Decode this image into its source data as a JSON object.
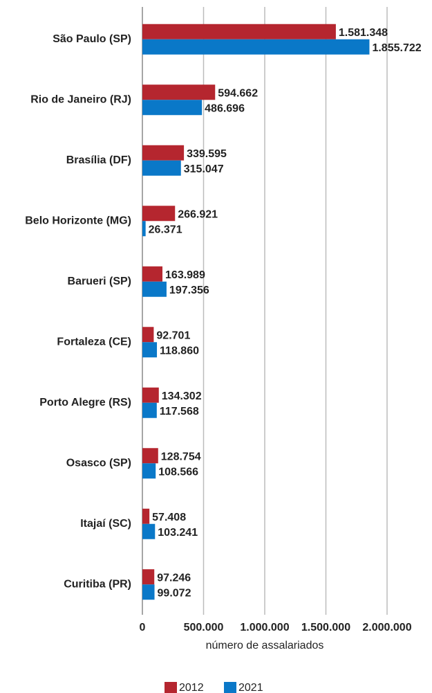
{
  "chart_data": {
    "type": "barh",
    "categories": [
      "São Paulo (SP)",
      "Rio de Janeiro (RJ)",
      "Brasília (DF)",
      "Belo Horizonte (MG)",
      "Barueri (SP)",
      "Fortaleza (CE)",
      "Porto Alegre (RS)",
      "Osasco (SP)",
      "Itajaí (SC)",
      "Curitiba (PR)"
    ],
    "series": [
      {
        "name": "2012",
        "color": "#b5262f",
        "values": [
          1581348,
          594662,
          339595,
          266921,
          163989,
          92701,
          134302,
          128754,
          57408,
          97246
        ],
        "value_labels": [
          "1.581.348",
          "594.662",
          "339.595",
          "266.921",
          "163.989",
          "92.701",
          "134.302",
          "128.754",
          "57.408",
          "97.246"
        ]
      },
      {
        "name": "2021",
        "color": "#0a78c8",
        "values": [
          1855722,
          486696,
          315047,
          26371,
          197356,
          118860,
          117568,
          108566,
          103241,
          99072
        ],
        "value_labels": [
          "1.855.722",
          "486.696",
          "315.047",
          "26.371",
          "197.356",
          "118.860",
          "117.568",
          "108.566",
          "103.241",
          "99.072"
        ]
      }
    ],
    "xlabel": "número de assalariados",
    "xlim": [
      0,
      2000000
    ],
    "xticks": [
      0,
      {
        "value": 500000,
        "label": "500.000"
      },
      {
        "value": 1000000,
        "label": "1.000.000"
      },
      {
        "value": 1500000,
        "label": "1.500.000"
      },
      {
        "value": 2000000,
        "label": "2.000.000"
      }
    ],
    "grid": true,
    "legend": "bottom"
  }
}
